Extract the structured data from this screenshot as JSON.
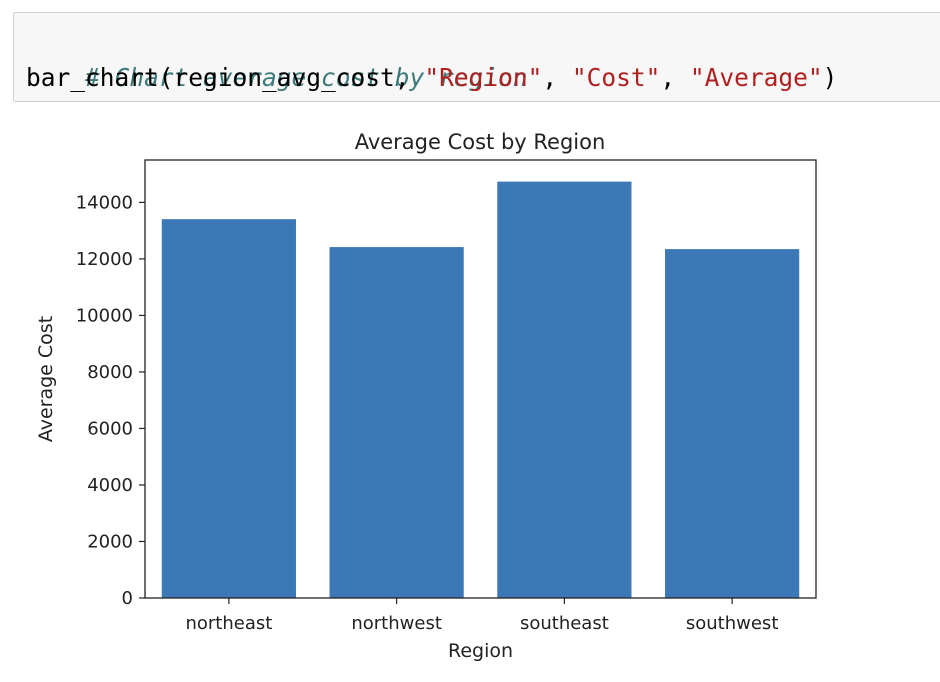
{
  "code_cell": {
    "comment": "# Chart average cost by region",
    "call_name": "bar_chart",
    "open_paren": "(",
    "arg1": "region_avg_cost",
    "sep1": ", ",
    "arg2": "\"Region\"",
    "sep2": ", ",
    "arg3": "\"Cost\"",
    "sep3": ", ",
    "arg4": "\"Average\"",
    "close_paren": ")"
  },
  "chart_data": {
    "type": "bar",
    "title": "Average Cost by Region",
    "xlabel": "Region",
    "ylabel": "Average Cost",
    "categories": [
      "northeast",
      "northwest",
      "southeast",
      "southwest"
    ],
    "values": [
      13406,
      12418,
      14735,
      12347
    ],
    "ylim": [
      0,
      15500
    ],
    "yticks": [
      0,
      2000,
      4000,
      6000,
      8000,
      10000,
      12000,
      14000
    ],
    "bar_color": "#3d78b6",
    "grid": false,
    "legend": "none"
  }
}
